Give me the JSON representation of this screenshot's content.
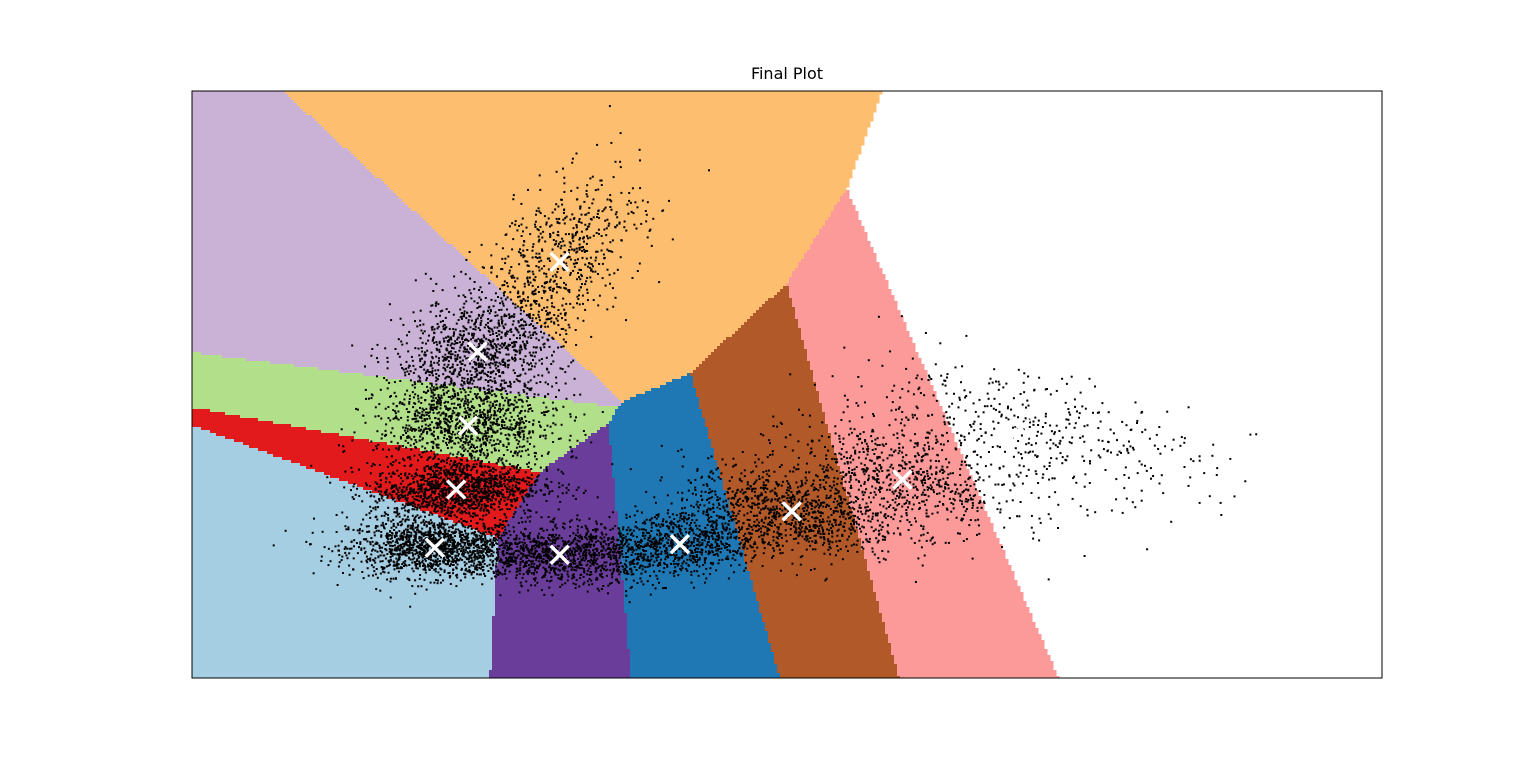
{
  "chart_data": {
    "type": "scatter",
    "title": "Final Plot",
    "xlabel": "",
    "ylabel": "",
    "xlim": [
      0,
      100
    ],
    "ylim": [
      0,
      100
    ],
    "show_ticks": false,
    "grid": false,
    "legend": "none",
    "background": "voronoi-regions",
    "point_color": "#000000",
    "centroid_marker": "x",
    "centroid_color": "#ffffff",
    "num_points_approx": 9000,
    "clusters": [
      {
        "region_color": "#a6cee3",
        "centroid": [
          20.4,
          22.2
        ],
        "spread": [
          3.6,
          2.5
        ],
        "tilt": 0.0,
        "count": 1400
      },
      {
        "region_color": "#e31a1c",
        "centroid": [
          22.2,
          32.1
        ],
        "spread": [
          3.6,
          2.5
        ],
        "tilt": 0.1,
        "count": 1300
      },
      {
        "region_color": "#b2df8a",
        "centroid": [
          23.2,
          43.0
        ],
        "spread": [
          3.8,
          3.8
        ],
        "tilt": 0.0,
        "count": 1100
      },
      {
        "region_color": "#cab2d6",
        "centroid": [
          24.0,
          55.6
        ],
        "spread": [
          3.5,
          4.8
        ],
        "tilt": 0.3,
        "count": 1000
      },
      {
        "region_color": "#fdbf6f",
        "centroid": [
          30.9,
          70.9
        ],
        "spread": [
          3.5,
          6.5
        ],
        "tilt": 1.2,
        "count": 650
      },
      {
        "region_color": "#6a3d9a",
        "centroid": [
          30.9,
          21.0
        ],
        "spread": [
          3.8,
          2.5
        ],
        "tilt": 0.0,
        "count": 1000
      },
      {
        "region_color": "#1f78b4",
        "centroid": [
          41.0,
          22.8
        ],
        "spread": [
          4.0,
          3.0
        ],
        "tilt": 0.2,
        "count": 900
      },
      {
        "region_color": "#b15928",
        "centroid": [
          50.4,
          28.4
        ],
        "spread": [
          4.6,
          3.5
        ],
        "tilt": -0.3,
        "count": 900
      },
      {
        "region_color": "#fb9a99",
        "centroid": [
          59.7,
          33.8
        ],
        "spread": [
          4.8,
          4.0
        ],
        "tilt": -0.4,
        "count": 700
      },
      {
        "region_color": "#ffff99",
        "centroid": [
          69.6,
          42.5
        ],
        "spread": [
          8.0,
          5.0
        ],
        "tilt": -0.4,
        "count": 450
      }
    ]
  }
}
